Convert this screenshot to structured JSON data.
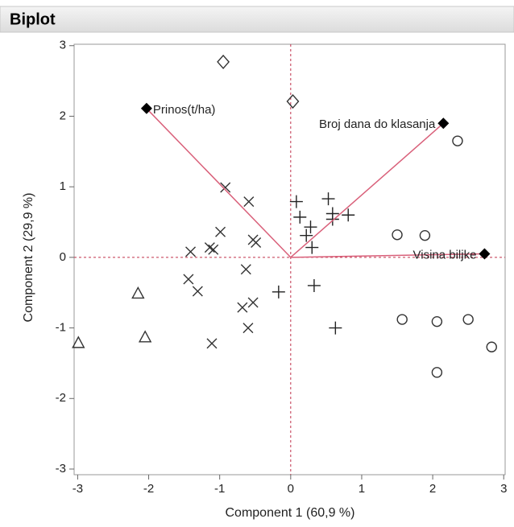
{
  "chart_data": {
    "type": "biplot",
    "title": "Biplot",
    "x_label": "Component 1  (60,9 %)",
    "y_label": "Component 2  (29,9 %)",
    "xlim": [
      -3.05,
      3.02
    ],
    "ylim": [
      -3.08,
      3.02
    ],
    "xticks": [
      -3,
      -2,
      -1,
      0,
      1,
      2,
      3
    ],
    "yticks": [
      -3,
      -2,
      -1,
      0,
      1,
      2,
      3
    ],
    "reference_lines": {
      "x": 0,
      "y": 0,
      "color": "#c0304a"
    },
    "series": [
      {
        "marker": "diamond",
        "color": "#333333",
        "x": [
          -0.95,
          0.03
        ],
        "values": [
          2.77,
          2.21
        ]
      },
      {
        "marker": "circle",
        "color": "#333333",
        "x": [
          2.35,
          1.5,
          1.89,
          1.57,
          2.06,
          2.5,
          2.83,
          2.06
        ],
        "values": [
          1.65,
          0.32,
          0.31,
          -0.88,
          -0.91,
          -0.88,
          -1.27,
          -1.63
        ]
      },
      {
        "marker": "triangle",
        "color": "#333333",
        "x": [
          -2.15,
          -2.05,
          -2.99
        ],
        "values": [
          -0.52,
          -1.14,
          -1.22
        ]
      },
      {
        "marker": "x",
        "color": "#333333",
        "x": [
          -0.92,
          -0.59,
          -0.99,
          -1.41,
          -1.14,
          -1.09,
          -0.53,
          -0.49,
          -0.63,
          -1.44,
          -1.31,
          -0.68,
          -0.53,
          -0.6,
          -1.11
        ],
        "values": [
          0.99,
          0.79,
          0.36,
          0.08,
          0.14,
          0.11,
          0.25,
          0.21,
          -0.17,
          -0.31,
          -0.48,
          -0.71,
          -0.64,
          -1.0,
          -1.22
        ]
      },
      {
        "marker": "plus",
        "color": "#222222",
        "x": [
          0.08,
          0.53,
          0.13,
          0.59,
          0.59,
          0.81,
          0.28,
          0.22,
          0.3,
          -0.17,
          0.33,
          0.63
        ],
        "values": [
          0.79,
          0.83,
          0.57,
          0.62,
          0.54,
          0.6,
          0.43,
          0.31,
          0.14,
          -0.49,
          -0.4,
          -1.0
        ]
      }
    ],
    "vectors": {
      "color": "#d9607a",
      "labels": [
        "Prinos(t/ha)",
        "Broj dana do klasanja",
        "Visina biljke"
      ],
      "x": [
        -2.03,
        2.15,
        2.73
      ],
      "values": [
        2.11,
        1.9,
        0.05
      ]
    }
  }
}
